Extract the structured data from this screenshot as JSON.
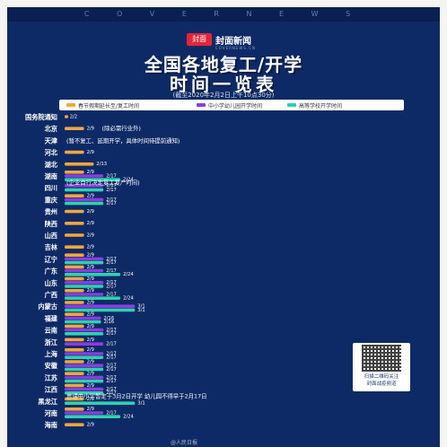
{
  "header": {
    "cover_text": "C O V E R N E W S",
    "logo_mark": "封面",
    "logo_text": "封面新闻",
    "logo_sub": "COVERNEWS.CN",
    "title_line1": "全国各地复工/开学",
    "title_line2": "时间一览表",
    "cutoff": "(截至2020年2月2日上午10点30分)"
  },
  "legend": {
    "items": [
      {
        "label": "春节假期延长至/复工时间",
        "color": "#f2a73b"
      },
      {
        "label": "中小学幼儿园开学时间",
        "color": "#8a3de0"
      },
      {
        "label": "高等学校开学时间",
        "color": "#2fd1b1"
      }
    ]
  },
  "colors": {
    "holiday": "#f2a73b",
    "school": "#8a3de0",
    "university": "#2fd1b1",
    "note": "#ffffff"
  },
  "chart_data": {
    "type": "bar",
    "orientation": "horizontal",
    "title": "全国各地复工/开学时间一览表",
    "series": [
      {
        "name": "春节假期延长至/复工时间",
        "key": "holiday"
      },
      {
        "name": "中小学幼儿园开学时间",
        "key": "school"
      },
      {
        "name": "高等学校开学时间",
        "key": "university"
      }
    ],
    "rows": [
      {
        "label": "国务院通知",
        "bars": [
          {
            "s": "holiday",
            "v": "2/2",
            "label": "2/2"
          }
        ]
      },
      {
        "label": "北京",
        "bars": [
          {
            "s": "holiday",
            "v": "2/9",
            "label": "2/9",
            "note": "(除必需行业外)"
          }
        ]
      },
      {
        "label": "天津",
        "note": "(暂不复工、延期开学，具体时间待提前通知)",
        "bars": []
      },
      {
        "label": "河北",
        "bars": [
          {
            "s": "holiday",
            "v": "2/9",
            "label": "2/9"
          }
        ]
      },
      {
        "label": "湖北",
        "bars": [
          {
            "s": "holiday",
            "v": "2/13",
            "label": "2/13"
          }
        ]
      },
      {
        "label": "湖南",
        "bars": [
          {
            "s": "holiday",
            "v": "2/9",
            "label": "2/9"
          },
          {
            "s": "school",
            "v": "2/17",
            "label": "2/17"
          },
          {
            "s": "university",
            "v": "2/24",
            "label": "2/24"
          }
        ]
      },
      {
        "label": "四川",
        "note": "(企业自行决定复工复产时间)",
        "bars": [
          {
            "s": "school",
            "v": "2/17",
            "label": "2/17"
          },
          {
            "s": "university",
            "v": "2/17",
            "label": "2/17"
          }
        ]
      },
      {
        "label": "重庆",
        "bars": [
          {
            "s": "holiday",
            "v": "2/9",
            "label": "2/9"
          },
          {
            "s": "school",
            "v": "2/17",
            "label": "2/17"
          },
          {
            "s": "university",
            "v": "2/17",
            "label": "2/17"
          }
        ]
      },
      {
        "label": "贵州",
        "bars": [
          {
            "s": "holiday",
            "v": "2/9",
            "label": "2/9"
          }
        ]
      },
      {
        "label": "陕西",
        "bars": [
          {
            "s": "holiday",
            "v": "2/9",
            "label": "2/9"
          }
        ]
      },
      {
        "label": "山西",
        "bars": [
          {
            "s": "holiday",
            "v": "2/9",
            "label": "2/9"
          }
        ]
      },
      {
        "label": "吉林",
        "bars": [
          {
            "s": "holiday",
            "v": "2/9",
            "label": "2/9"
          }
        ]
      },
      {
        "label": "辽宁",
        "bars": [
          {
            "s": "holiday",
            "v": "2/9",
            "label": "2/9"
          },
          {
            "s": "school",
            "v": "2/17",
            "label": "2/17"
          },
          {
            "s": "university",
            "v": "2/17",
            "label": "2/17"
          }
        ]
      },
      {
        "label": "广东",
        "bars": [
          {
            "s": "holiday",
            "v": "2/9",
            "label": "2/9"
          },
          {
            "s": "school",
            "v": "2/17",
            "label": "2/17"
          },
          {
            "s": "university",
            "v": "2/24",
            "label": "2/24"
          }
        ]
      },
      {
        "label": "山东",
        "bars": [
          {
            "s": "holiday",
            "v": "2/9",
            "label": "2/9"
          },
          {
            "s": "school",
            "v": "2/17",
            "label": "2/17"
          },
          {
            "s": "university",
            "v": "2/17",
            "label": "2/17"
          }
        ]
      },
      {
        "label": "广西",
        "bars": [
          {
            "s": "holiday",
            "v": "2/9",
            "label": "2/9"
          },
          {
            "s": "school",
            "v": "2/17",
            "label": "2/17"
          },
          {
            "s": "university",
            "v": "2/24",
            "label": "2/24"
          }
        ]
      },
      {
        "label": "内蒙古",
        "bars": [
          {
            "s": "holiday",
            "v": "2/9",
            "label": "2/9"
          },
          {
            "s": "school",
            "v": "3/1",
            "label": "3/1"
          },
          {
            "s": "university",
            "v": "3/1",
            "label": "3/1"
          }
        ]
      },
      {
        "label": "福建",
        "bars": [
          {
            "s": "holiday",
            "v": "2/9",
            "label": "2/9"
          },
          {
            "s": "school",
            "v": "2/16",
            "label": "2/16"
          },
          {
            "s": "university",
            "v": "2/16",
            "label": "2/16"
          }
        ]
      },
      {
        "label": "云南",
        "bars": [
          {
            "s": "holiday",
            "v": "2/9",
            "label": "2/9"
          },
          {
            "s": "school",
            "v": "2/17",
            "label": "2/17"
          },
          {
            "s": "university",
            "v": "2/17",
            "label": "2/17"
          }
        ]
      },
      {
        "label": "浙江",
        "bars": [
          {
            "s": "holiday",
            "v": "2/9",
            "label": "2/9"
          },
          {
            "s": "school",
            "v": "2/17",
            "label": "2/17"
          }
        ]
      },
      {
        "label": "上海",
        "bars": [
          {
            "s": "holiday",
            "v": "2/9",
            "label": "2/9"
          },
          {
            "s": "school",
            "v": "2/17",
            "label": "2/17"
          },
          {
            "s": "university",
            "v": "2/17",
            "label": "2/17"
          }
        ]
      },
      {
        "label": "安徽",
        "bars": [
          {
            "s": "holiday",
            "v": "2/9",
            "label": "2/9"
          },
          {
            "s": "school",
            "v": "2/17",
            "label": "2/17"
          },
          {
            "s": "university",
            "v": "2/17",
            "label": "2/17"
          }
        ]
      },
      {
        "label": "江苏",
        "bars": [
          {
            "s": "holiday",
            "v": "2/9",
            "label": "2/9"
          },
          {
            "s": "school",
            "v": "2/17",
            "label": "2/17"
          },
          {
            "s": "university",
            "v": "2/17",
            "label": "2/17"
          }
        ]
      },
      {
        "label": "江西",
        "bars": [
          {
            "s": "holiday",
            "v": "2/9",
            "label": "2/9"
          },
          {
            "s": "school",
            "v": "2/17",
            "label": "2/17"
          },
          {
            "s": "university",
            "v": "2/17",
            "label": "2/17"
          }
        ]
      },
      {
        "label": "黑龙江",
        "note": "普通中小学暂定于3月2日开学 幼儿园不得早于2月17日",
        "bars": [
          {
            "s": "holiday",
            "v": "2/9",
            "label": "2/9"
          },
          {
            "s": "university",
            "v": "3/1",
            "label": "3/1"
          }
        ]
      },
      {
        "label": "河南",
        "bars": [
          {
            "s": "holiday",
            "v": "2/9",
            "label": "2/9"
          },
          {
            "s": "school",
            "v": "2/17",
            "label": "2/17"
          },
          {
            "s": "university",
            "v": "2/24",
            "label": "2/24"
          }
        ]
      },
      {
        "label": "海南",
        "bars": [
          {
            "s": "holiday",
            "v": "2/9",
            "label": "2/9"
          }
        ]
      }
    ]
  },
  "qr": {
    "caption_line1": "扫描二维码关注",
    "caption_line2": "封面战疫频道"
  },
  "watermark": "@人民日报"
}
